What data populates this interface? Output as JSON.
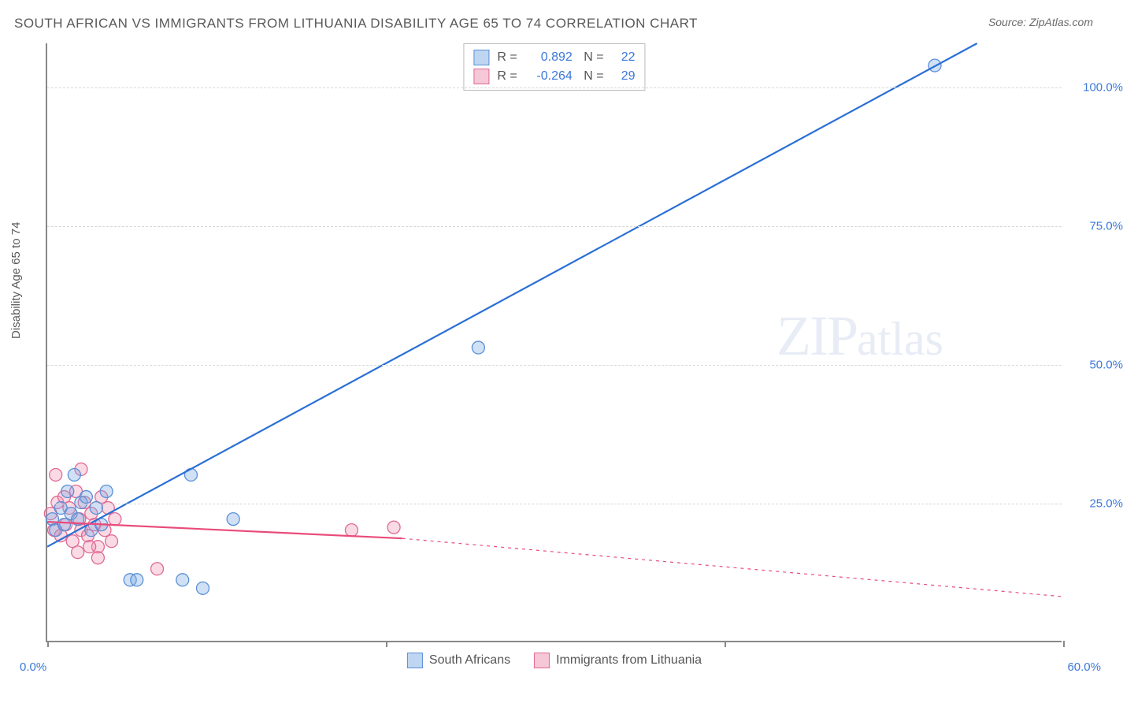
{
  "title": "SOUTH AFRICAN VS IMMIGRANTS FROM LITHUANIA DISABILITY AGE 65 TO 74 CORRELATION CHART",
  "source": "Source: ZipAtlas.com",
  "ylabel": "Disability Age 65 to 74",
  "watermark": "ZIPatlas",
  "chart": {
    "type": "scatter",
    "xlim": [
      0,
      60
    ],
    "ylim": [
      0,
      108
    ],
    "y_ticks": [
      25,
      50,
      75,
      100
    ],
    "y_tick_labels": [
      "25.0%",
      "50.0%",
      "75.0%",
      "100.0%"
    ],
    "x_ticks": [
      0,
      20,
      40,
      60
    ],
    "x_tick_labels_left": "0.0%",
    "x_tick_labels_right": "60.0%",
    "grid_color": "#d8d8d8",
    "axis_color": "#888888",
    "background": "#ffffff",
    "tick_label_color": "#3b78d8",
    "axis_label_color": "#5a5a5a",
    "title_color": "#5a5a5a",
    "title_fontsize": 17,
    "label_fontsize": 15,
    "tick_fontsize": 15,
    "series": [
      {
        "name": "South Africans",
        "marker_color_fill": "rgba(120,170,230,0.35)",
        "marker_color_stroke": "#5b8fd6",
        "marker_radius": 8,
        "line_color": "#2a6fd6",
        "line_width": 2.2,
        "R": "0.892",
        "N": "22",
        "swatch_fill": "#bfd6f2",
        "swatch_border": "#5b8fd6",
        "trend": {
          "x1": 0,
          "y1": 17,
          "x2": 55,
          "y2": 108
        },
        "trend_dash": null,
        "points": [
          [
            0.3,
            22
          ],
          [
            0.5,
            20
          ],
          [
            0.8,
            24
          ],
          [
            1.0,
            21
          ],
          [
            1.2,
            27
          ],
          [
            1.4,
            23
          ],
          [
            1.6,
            30
          ],
          [
            1.8,
            22
          ],
          [
            2.0,
            25
          ],
          [
            2.3,
            26
          ],
          [
            2.6,
            20
          ],
          [
            2.9,
            24
          ],
          [
            3.2,
            21
          ],
          [
            3.5,
            27
          ],
          [
            4.9,
            11
          ],
          [
            5.3,
            11
          ],
          [
            8.0,
            11
          ],
          [
            9.2,
            9.5
          ],
          [
            8.5,
            30
          ],
          [
            11.0,
            22
          ],
          [
            25.5,
            53
          ],
          [
            52.5,
            104
          ]
        ]
      },
      {
        "name": "Immigrants from Lithuania",
        "marker_color_fill": "rgba(240,150,180,0.35)",
        "marker_color_stroke": "#e06a94",
        "marker_radius": 8,
        "line_color": "#e94b7a",
        "line_width": 2.2,
        "R": "-0.264",
        "N": "29",
        "swatch_fill": "#f6c8d7",
        "swatch_border": "#e06a94",
        "trend": {
          "x1": 0,
          "y1": 21.5,
          "x2": 21,
          "y2": 18.5
        },
        "trend_dash": {
          "x1": 21,
          "y1": 18.5,
          "x2": 60,
          "y2": 8
        },
        "points": [
          [
            0.2,
            23
          ],
          [
            0.4,
            20
          ],
          [
            0.6,
            25
          ],
          [
            0.8,
            19
          ],
          [
            1.0,
            26
          ],
          [
            1.1,
            21
          ],
          [
            1.3,
            24
          ],
          [
            1.5,
            18
          ],
          [
            1.7,
            27
          ],
          [
            1.9,
            22
          ],
          [
            2.0,
            20
          ],
          [
            2.2,
            25
          ],
          [
            2.4,
            19
          ],
          [
            2.6,
            23
          ],
          [
            2.8,
            21
          ],
          [
            3.0,
            17
          ],
          [
            3.2,
            26
          ],
          [
            3.4,
            20
          ],
          [
            3.6,
            24
          ],
          [
            3.8,
            18
          ],
          [
            4.0,
            22
          ],
          [
            2.0,
            31
          ],
          [
            0.5,
            30
          ],
          [
            1.8,
            16
          ],
          [
            2.5,
            17
          ],
          [
            3.0,
            15
          ],
          [
            6.5,
            13
          ],
          [
            18.0,
            20
          ],
          [
            20.5,
            20.5
          ]
        ]
      }
    ]
  },
  "legend_bottom": [
    "South Africans",
    "Immigrants from Lithuania"
  ]
}
